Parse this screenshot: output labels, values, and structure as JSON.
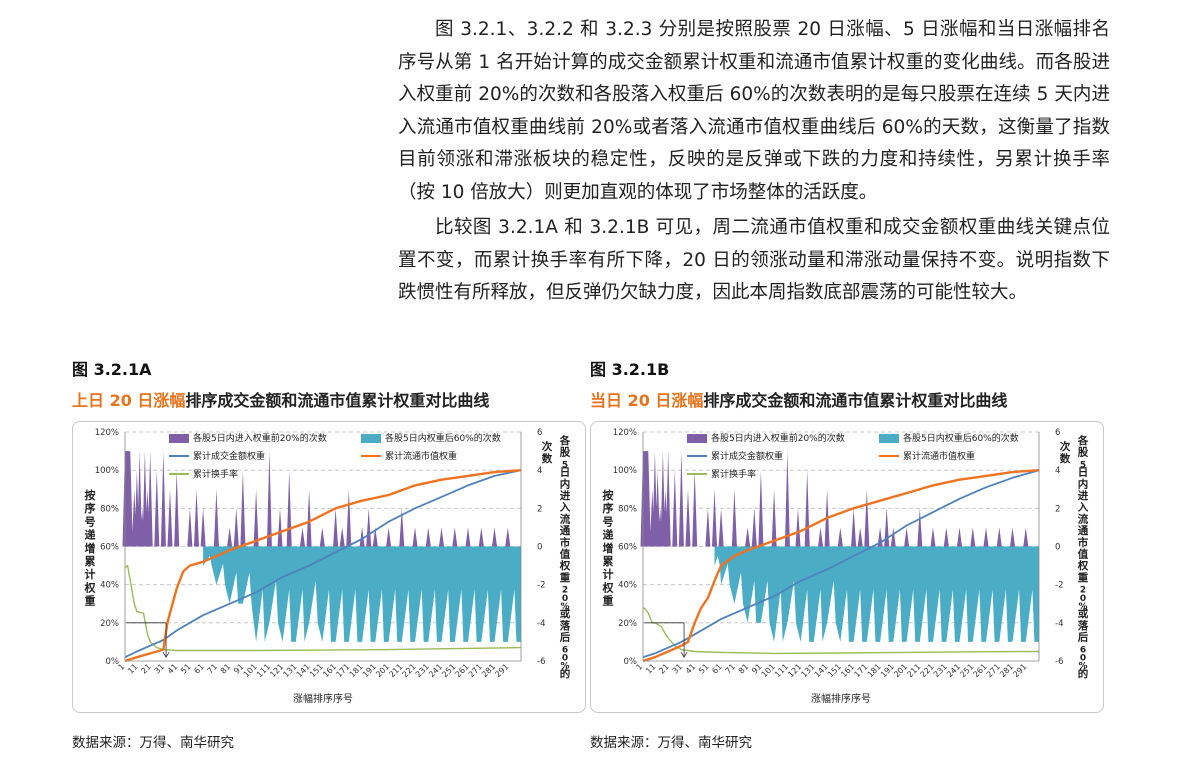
{
  "paragraphs": [
    "图 3.2.1、3.2.2 和 3.2.3 分别是按照股票 20 日涨幅、5 日涨幅和当日涨幅排名序号从第 1 名开始计算的成交金额累计权重和流通市值累计权重的变化曲线。而各股进入权重前 20%的次数和各股落入权重后 60%的次数表明的是每只股票在连续 5 天内进入流通市值权重曲线前 20%或者落入流通市值权重曲线后 60%的天数，这衡量了指数目前领涨和滞涨板块的稳定性，反映的是反弹或下跌的力度和持续性，另累计换手率（按 10 倍放大）则更加直观的体现了市场整体的活跃度。",
    "比较图 3.2.1A 和 3.2.1B 可见，周二流通市值权重和成交金额权重曲线关键点位置不变，而累计换手率有所下降，20 日的领涨动量和滞涨动量保持不变。说明指数下跌惯性有所释放，但反弹仍欠缺力度，因此本周指数底部震荡的可能性较大。"
  ],
  "figures": [
    {
      "label": "图 3.2.1A",
      "title_highlight": "上日 20 日涨幅",
      "title_rest": "排序成交金额和流通市值累计权重对比曲线",
      "source": "数据来源：万得、南华研究"
    },
    {
      "label": "图 3.2.1B",
      "title_highlight": "当日 20 日涨幅",
      "title_rest": "排序成交金额和流通市值累计权重对比曲线",
      "source": "数据来源：万得、南华研究"
    }
  ],
  "colors": {
    "purple": "#7f60a8",
    "teal": "#4bacc6",
    "blue": "#4f81bd",
    "orange": "#f07320",
    "green": "#9bbb59",
    "highlight": "#e8731c"
  },
  "chart_data": [
    {
      "type": "area",
      "xlabel": "涨幅排序序号",
      "ylabel": "按序号递增累计权重",
      "ylabel2": "各股5日内进入流通市值权重20%或落后60%的次数",
      "x_range": [
        1,
        300
      ],
      "x_ticks": [
        "1",
        "11",
        "21",
        "31",
        "41",
        "51",
        "61",
        "71",
        "81",
        "91",
        "101",
        "111",
        "121",
        "131",
        "141",
        "151",
        "161",
        "171",
        "181",
        "191",
        "201",
        "211",
        "221",
        "231",
        "241",
        "251",
        "261",
        "271",
        "281",
        "291"
      ],
      "y_ticks": [
        "0%",
        "20%",
        "40%",
        "60%",
        "80%",
        "100%",
        "120%"
      ],
      "y_range": [
        0,
        1.2
      ],
      "y2_ticks": [
        "-6",
        "-4",
        "-2",
        "0",
        "2",
        "4",
        "6"
      ],
      "y2_range": [
        -6,
        6
      ],
      "legend": [
        "各股5日内进入权重前20%的次数",
        "各股5日内权重后60%的次数",
        "累计成交金额权重",
        "累计流通市值权重",
        "累计换手率"
      ],
      "series": [
        {
          "name": "累计成交金额权重",
          "x": [
            1,
            10,
            20,
            30,
            40,
            50,
            60,
            80,
            100,
            120,
            140,
            160,
            180,
            200,
            220,
            240,
            260,
            280,
            300
          ],
          "y": [
            0.02,
            0.05,
            0.08,
            0.11,
            0.16,
            0.2,
            0.24,
            0.3,
            0.36,
            0.44,
            0.5,
            0.57,
            0.64,
            0.73,
            0.8,
            0.86,
            0.92,
            0.97,
            1.0
          ]
        },
        {
          "name": "累计流通市值权重",
          "x": [
            1,
            10,
            20,
            30,
            33,
            40,
            45,
            50,
            60,
            80,
            100,
            120,
            140,
            160,
            180,
            200,
            220,
            240,
            260,
            280,
            300
          ],
          "y": [
            0.0,
            0.02,
            0.04,
            0.06,
            0.2,
            0.38,
            0.47,
            0.5,
            0.52,
            0.58,
            0.63,
            0.68,
            0.73,
            0.8,
            0.84,
            0.87,
            0.92,
            0.95,
            0.97,
            0.99,
            1.0
          ]
        },
        {
          "name": "累计换手率",
          "x": [
            1,
            3,
            5,
            8,
            10,
            15,
            18,
            20,
            25,
            30,
            40,
            60,
            100,
            150,
            200,
            250,
            300
          ],
          "y": [
            0.49,
            0.5,
            0.42,
            0.3,
            0.26,
            0.25,
            0.14,
            0.1,
            0.07,
            0.06,
            0.055,
            0.055,
            0.055,
            0.057,
            0.06,
            0.065,
            0.07
          ]
        },
        {
          "name": "各股5日内进入权重前20%的次数",
          "x": [
            1,
            3,
            5,
            8,
            10,
            12,
            14,
            16,
            18,
            20,
            25,
            30,
            35,
            40,
            50,
            55,
            60,
            70,
            80,
            85,
            90,
            100,
            110,
            118,
            125,
            135,
            140,
            150,
            160,
            165,
            170,
            180,
            185,
            190,
            200,
            210,
            220,
            230,
            240,
            250,
            260,
            270,
            280,
            290
          ],
          "y": [
            5,
            5,
            5,
            3,
            4,
            5,
            2,
            5,
            3,
            5,
            4,
            5,
            3,
            4,
            2,
            3,
            2,
            3,
            1,
            2,
            4,
            3,
            5,
            2,
            4,
            1,
            3,
            1,
            2,
            1,
            3,
            1,
            2,
            1,
            1,
            2,
            1,
            1,
            1,
            1,
            1,
            1,
            1,
            1
          ]
        },
        {
          "name": "各股5日内权重后60%的次数",
          "x": [
            60,
            70,
            80,
            90,
            100,
            110,
            120,
            130,
            140,
            150,
            160,
            170,
            180,
            190,
            200,
            210,
            220,
            230,
            240,
            250,
            260,
            270,
            280,
            290,
            300
          ],
          "y": [
            -1,
            -2,
            -3,
            -3,
            -5,
            -4,
            -5,
            -5,
            -4,
            -5,
            -5,
            -5,
            -5,
            -5,
            -5,
            -5,
            -5,
            -5,
            -5,
            -5,
            -5,
            -5,
            -5,
            -5,
            -5
          ]
        }
      ]
    },
    {
      "type": "area",
      "xlabel": "涨幅排序序号",
      "ylabel": "按序号递增累计权重",
      "ylabel2": "各股5日内进入流通市值权重20%或落后60%的次数",
      "x_range": [
        1,
        300
      ],
      "x_ticks": [
        "1",
        "11",
        "21",
        "31",
        "41",
        "51",
        "61",
        "71",
        "81",
        "91",
        "101",
        "111",
        "121",
        "131",
        "141",
        "151",
        "161",
        "171",
        "181",
        "191",
        "201",
        "211",
        "221",
        "231",
        "241",
        "251",
        "261",
        "271",
        "281",
        "291"
      ],
      "y_ticks": [
        "0%",
        "20%",
        "40%",
        "60%",
        "80%",
        "100%",
        "120%"
      ],
      "y_range": [
        0,
        1.2
      ],
      "y2_ticks": [
        "-6",
        "-4",
        "-2",
        "0",
        "2",
        "4",
        "6"
      ],
      "y2_range": [
        -6,
        6
      ],
      "legend": [
        "各股5日内进入权重前20%的次数",
        "各股5日内权重后60%的次数",
        "累计成交金额权重",
        "累计流通市值权重",
        "累计换手率"
      ],
      "series": [
        {
          "name": "累计成交金额权重",
          "x": [
            1,
            10,
            20,
            30,
            40,
            50,
            60,
            80,
            100,
            120,
            140,
            160,
            180,
            200,
            220,
            240,
            260,
            280,
            300
          ],
          "y": [
            0.02,
            0.04,
            0.07,
            0.1,
            0.14,
            0.18,
            0.22,
            0.28,
            0.34,
            0.42,
            0.48,
            0.55,
            0.62,
            0.71,
            0.78,
            0.85,
            0.91,
            0.96,
            1.0
          ]
        },
        {
          "name": "累计流通市值权重",
          "x": [
            1,
            10,
            20,
            30,
            35,
            40,
            45,
            50,
            55,
            60,
            70,
            80,
            100,
            120,
            140,
            160,
            180,
            200,
            220,
            240,
            260,
            280,
            300
          ],
          "y": [
            0.0,
            0.02,
            0.05,
            0.08,
            0.1,
            0.2,
            0.28,
            0.33,
            0.42,
            0.5,
            0.55,
            0.58,
            0.63,
            0.68,
            0.75,
            0.8,
            0.84,
            0.88,
            0.92,
            0.95,
            0.97,
            0.99,
            1.0
          ]
        },
        {
          "name": "累计换手率",
          "x": [
            1,
            3,
            5,
            8,
            10,
            15,
            18,
            20,
            25,
            30,
            40,
            60,
            100,
            150,
            200,
            250,
            300
          ],
          "y": [
            0.28,
            0.27,
            0.25,
            0.2,
            0.2,
            0.18,
            0.14,
            0.12,
            0.08,
            0.06,
            0.05,
            0.045,
            0.04,
            0.042,
            0.045,
            0.048,
            0.05
          ]
        },
        {
          "name": "各股5日内进入权重前20%的次数",
          "x": [
            1,
            3,
            5,
            8,
            10,
            12,
            14,
            16,
            18,
            20,
            25,
            30,
            35,
            40,
            50,
            55,
            60,
            70,
            80,
            85,
            90,
            100,
            110,
            118,
            125,
            135,
            140,
            150,
            160,
            165,
            170,
            180,
            185,
            190,
            200,
            210,
            220,
            230,
            240,
            250,
            260,
            270,
            280,
            290
          ],
          "y": [
            5,
            5,
            5,
            3,
            5,
            4,
            2,
            5,
            3,
            5,
            4,
            5,
            3,
            4,
            2,
            3,
            2,
            3,
            1,
            2,
            4,
            3,
            5,
            2,
            4,
            1,
            3,
            1,
            2,
            1,
            3,
            1,
            2,
            1,
            1,
            2,
            1,
            1,
            1,
            1,
            1,
            1,
            1,
            1
          ]
        },
        {
          "name": "各股5日内权重后60%的次数",
          "x": [
            55,
            60,
            70,
            80,
            90,
            100,
            110,
            120,
            130,
            140,
            150,
            160,
            170,
            180,
            190,
            200,
            210,
            220,
            230,
            240,
            250,
            260,
            270,
            280,
            290,
            300
          ],
          "y": [
            -1,
            -2,
            -3,
            -4,
            -4,
            -5,
            -4,
            -5,
            -5,
            -4,
            -5,
            -5,
            -5,
            -5,
            -5,
            -5,
            -5,
            -5,
            -5,
            -5,
            -5,
            -5,
            -5,
            -5,
            -5,
            -5
          ]
        }
      ]
    }
  ]
}
